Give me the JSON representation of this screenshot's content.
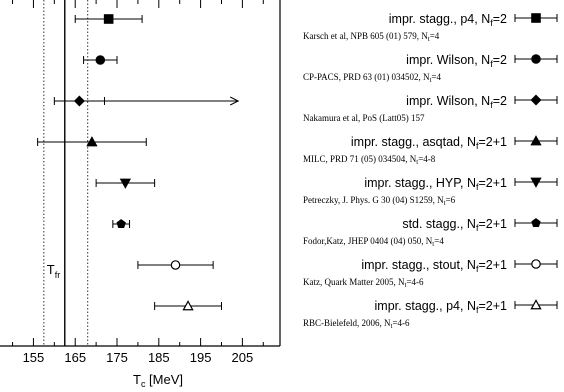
{
  "chart_data": {
    "type": "scatter",
    "xlabel": "T",
    "xlabel_sub": "c",
    "xlabel_unit": " [MeV]",
    "xlim": [
      147,
      214
    ],
    "xticks": [
      155,
      165,
      175,
      185,
      195,
      205
    ],
    "reference_lines": {
      "solid": 162.5,
      "dotted": [
        157.5,
        168
      ],
      "label": "T",
      "label_sub": "fr"
    },
    "series": [
      {
        "name": "impr. stagg., p4, N_f=2",
        "citation": "Karsch et al, NPB 605 (01) 579, N_t=4",
        "marker": "square-filled",
        "x": 173,
        "xerr": [
          8,
          8
        ]
      },
      {
        "name": "impr. Wilson, N_f=2",
        "citation": "CP-PACS, PRD 63 (01) 034502, N_t=4",
        "marker": "circle-filled",
        "x": 171,
        "xerr": [
          4,
          4
        ]
      },
      {
        "name": "impr. Wilson, N_f=2",
        "citation": "Nakamura et al, PoS (Latt05) 157",
        "marker": "diamond-filled",
        "x": 166,
        "xerr": [
          6,
          6
        ],
        "arrow_to": 204
      },
      {
        "name": "impr. stagg., asqtad, N_f=2+1",
        "citation": "MILC, PRD 71 (05) 034504, N_t=4-8",
        "marker": "triangle-up-filled",
        "x": 169,
        "xerr": [
          13,
          13
        ]
      },
      {
        "name": "impr. stagg., HYP, N_f=2+1",
        "citation": "Petreczky, J. Phys. G 30 (04) S1259, N_t=6",
        "marker": "triangle-down-filled",
        "x": 177,
        "xerr": [
          7,
          7
        ]
      },
      {
        "name": "std. stagg., N_f=2+1",
        "citation": "Fodor,Katz, JHEP 0404 (04) 050, N_t=4",
        "marker": "pentagon-filled",
        "x": 176,
        "xerr": [
          2,
          2
        ]
      },
      {
        "name": "impr. stagg., stout, N_f=2+1",
        "citation": "Katz, Quark Matter 2005, N_t=4-6",
        "marker": "circle-open",
        "x": 189,
        "xerr": [
          9,
          9
        ]
      },
      {
        "name": "impr. stagg., p4, N_f=2+1",
        "citation": "RBC-Bielefeld, 2006, N_t=4-6",
        "marker": "triangle-up-open",
        "x": 192,
        "xerr": [
          8,
          8
        ]
      }
    ]
  }
}
